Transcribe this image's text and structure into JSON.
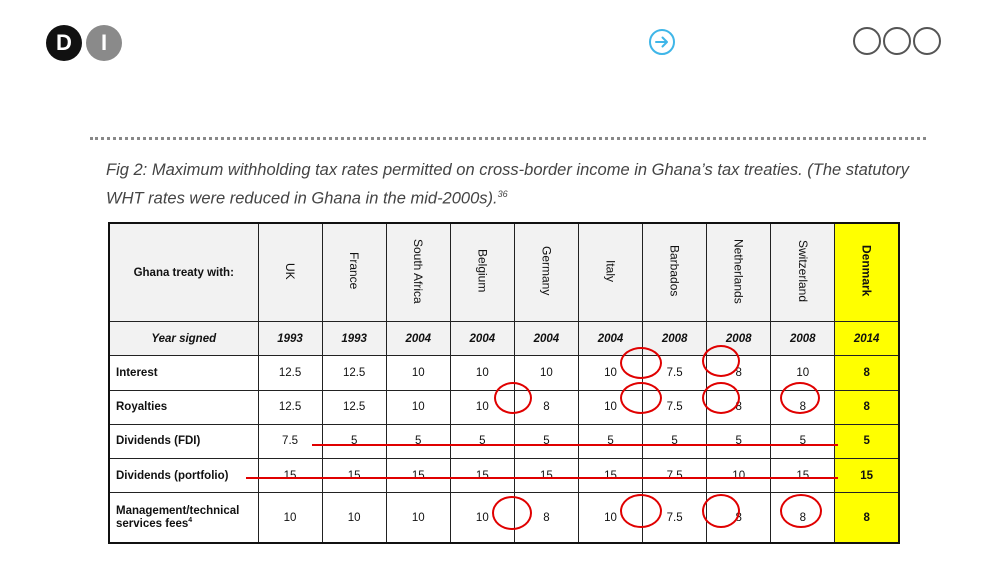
{
  "logo": {
    "letter1": "D",
    "letter2": "I"
  },
  "nav": {
    "next_icon": "arrow-right-circle-icon",
    "menu_icon": "three-circles-menu-icon"
  },
  "caption": {
    "text": "Fig 2: Maximum withholding tax rates permitted on cross-border income in Ghana’s tax treaties. (The statutory WHT rates were reduced in Ghana in the mid-2000s).",
    "footnote": "36"
  },
  "table": {
    "header_label": "Ghana treaty with:",
    "countries": [
      "UK",
      "France",
      "South Africa",
      "Belgium",
      "Germany",
      "Italy",
      "Barbados",
      "Netherlands",
      "Switzerland",
      "Denmark"
    ],
    "year_label": "Year signed",
    "years": [
      "1993",
      "1993",
      "2004",
      "2004",
      "2004",
      "2004",
      "2008",
      "2008",
      "2008",
      "2014"
    ],
    "rows": [
      {
        "label": "Interest",
        "values": [
          "12.5",
          "12.5",
          "10",
          "10",
          "10",
          "10",
          "7.5",
          "8",
          "10",
          "8"
        ]
      },
      {
        "label": "Royalties",
        "values": [
          "12.5",
          "12.5",
          "10",
          "10",
          "8",
          "10",
          "7.5",
          "8",
          "8",
          "8"
        ]
      },
      {
        "label": "Dividends (FDI)",
        "values": [
          "7.5",
          "5",
          "5",
          "5",
          "5",
          "5",
          "5",
          "5",
          "5",
          "5"
        ]
      },
      {
        "label": "Dividends (portfolio)",
        "values": [
          "15",
          "15",
          "15",
          "15",
          "15",
          "15",
          "7.5",
          "10",
          "15",
          "15"
        ]
      },
      {
        "label": "Management/technical services fees",
        "footnote": "4",
        "values": [
          "10",
          "10",
          "10",
          "10",
          "8",
          "10",
          "7.5",
          "8",
          "8",
          "8"
        ]
      }
    ],
    "highlight_color": "#ffff00",
    "annotation_color": "#e00000"
  }
}
